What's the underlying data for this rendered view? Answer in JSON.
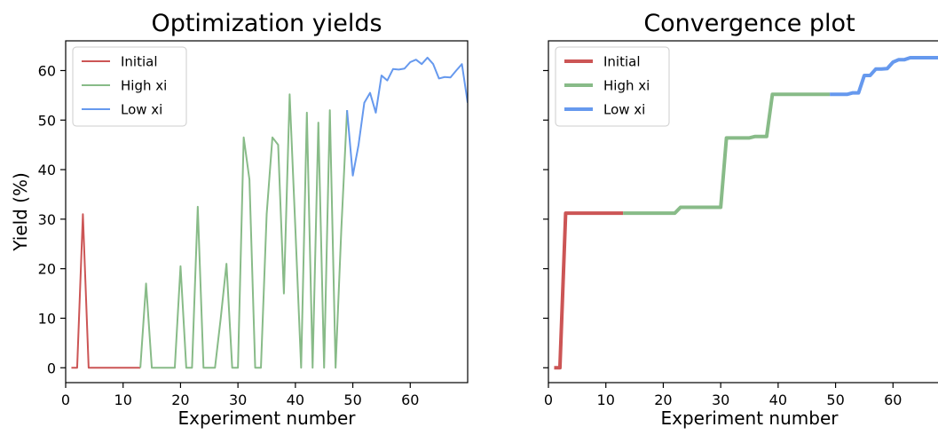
{
  "colors": {
    "initial": "#cc5555",
    "high_xi": "#88bb88",
    "low_xi": "#6699ee"
  },
  "chart_data": [
    {
      "type": "line",
      "title": "Optimization yields",
      "xlabel": "Experiment number",
      "ylabel": "Yield (%)",
      "xlim": [
        0,
        70
      ],
      "ylim": [
        -3,
        66
      ],
      "xticks": [
        0,
        10,
        20,
        30,
        40,
        50,
        60
      ],
      "yticks": [
        0,
        10,
        20,
        30,
        40,
        50,
        60
      ],
      "legend": "top-left",
      "grid": false,
      "series": [
        {
          "name": "Initial",
          "color_key": "initial",
          "width": 2,
          "x": [
            1,
            2,
            3,
            4,
            5,
            6,
            7,
            8,
            9,
            10,
            11,
            12,
            13
          ],
          "y": [
            0,
            0,
            31,
            0,
            0,
            0,
            0,
            0,
            0,
            0,
            0,
            0,
            0
          ]
        },
        {
          "name": "High xi",
          "color_key": "high_xi",
          "width": 2,
          "x": [
            13,
            14,
            15,
            16,
            17,
            18,
            19,
            20,
            21,
            22,
            23,
            24,
            25,
            26,
            27,
            28,
            29,
            30,
            31,
            32,
            33,
            34,
            35,
            36,
            37,
            38,
            39,
            40,
            41,
            42,
            43,
            44,
            45,
            46,
            47,
            48,
            49
          ],
          "y": [
            0,
            17,
            0,
            0,
            0,
            0,
            0,
            20.5,
            0,
            0,
            32.5,
            0,
            0,
            0,
            10,
            21,
            0,
            0,
            46.5,
            38,
            0,
            0,
            31,
            46.5,
            45,
            15,
            55.2,
            28,
            0,
            51.5,
            0,
            49.5,
            0,
            52,
            0,
            28,
            52
          ]
        },
        {
          "name": "Low xi",
          "color_key": "low_xi",
          "width": 2,
          "x": [
            49,
            50,
            51,
            52,
            53,
            54,
            55,
            56,
            57,
            58,
            59,
            60,
            61,
            62,
            63,
            64,
            65,
            66,
            67,
            68,
            69,
            70
          ],
          "y": [
            52,
            38.8,
            45,
            53.5,
            55.5,
            51.5,
            59,
            58,
            60.3,
            60.2,
            60.4,
            61.7,
            62.2,
            61.3,
            62.6,
            61.3,
            58.4,
            58.7,
            58.6,
            60,
            61.3,
            53.5
          ]
        }
      ]
    },
    {
      "type": "line",
      "title": "Convergence plot",
      "xlabel": "Experiment number",
      "ylabel": "",
      "xlim": [
        0,
        70
      ],
      "ylim": [
        -3,
        66
      ],
      "xticks": [
        0,
        10,
        20,
        30,
        40,
        50,
        60
      ],
      "yticks": [
        0,
        10,
        20,
        30,
        40,
        50,
        60
      ],
      "legend": "top-left",
      "grid": false,
      "series": [
        {
          "name": "Initial",
          "color_key": "initial",
          "width": 4,
          "x": [
            1,
            2,
            3,
            4,
            5,
            6,
            7,
            8,
            9,
            10,
            11,
            12,
            13
          ],
          "y": [
            0,
            0,
            31.2,
            31.2,
            31.2,
            31.2,
            31.2,
            31.2,
            31.2,
            31.2,
            31.2,
            31.2,
            31.2
          ]
        },
        {
          "name": "High xi",
          "color_key": "high_xi",
          "width": 4,
          "x": [
            13,
            14,
            15,
            16,
            17,
            18,
            19,
            20,
            21,
            22,
            23,
            24,
            25,
            26,
            27,
            28,
            29,
            30,
            31,
            32,
            33,
            34,
            35,
            36,
            37,
            38,
            39,
            40,
            41,
            42,
            43,
            44,
            45,
            46,
            47,
            48,
            49
          ],
          "y": [
            31.2,
            31.2,
            31.2,
            31.2,
            31.2,
            31.2,
            31.2,
            31.2,
            31.2,
            31.2,
            32.4,
            32.4,
            32.4,
            32.4,
            32.4,
            32.4,
            32.4,
            32.4,
            46.4,
            46.4,
            46.4,
            46.4,
            46.4,
            46.7,
            46.7,
            46.7,
            55.2,
            55.2,
            55.2,
            55.2,
            55.2,
            55.2,
            55.2,
            55.2,
            55.2,
            55.2,
            55.2
          ]
        },
        {
          "name": "Low xi",
          "color_key": "low_xi",
          "width": 4,
          "x": [
            49,
            50,
            51,
            52,
            53,
            54,
            55,
            56,
            57,
            58,
            59,
            60,
            61,
            62,
            63,
            64,
            65,
            66,
            67,
            68,
            69,
            70
          ],
          "y": [
            55.2,
            55.2,
            55.2,
            55.2,
            55.5,
            55.5,
            59,
            59,
            60.3,
            60.3,
            60.4,
            61.7,
            62.2,
            62.2,
            62.6,
            62.6,
            62.6,
            62.6,
            62.6,
            62.6,
            62.6,
            62.6
          ]
        }
      ]
    }
  ]
}
